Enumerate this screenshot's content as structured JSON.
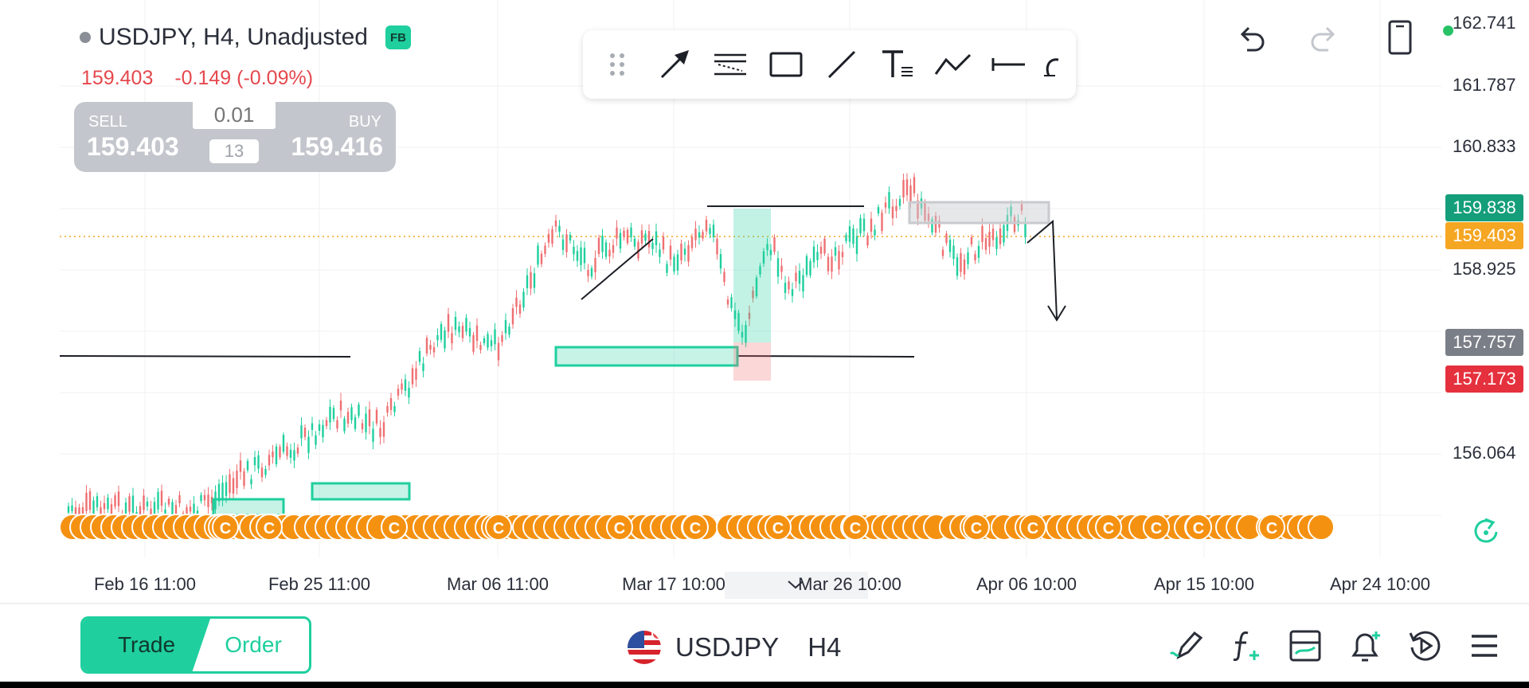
{
  "header": {
    "symbol_title": "USDJPY, H4, Unadjusted",
    "badge": "FB",
    "last_price": "159.403",
    "change": "-0.149 (-0.09%)"
  },
  "trade_panel": {
    "sell_label": "SELL",
    "sell_price": "159.403",
    "buy_label": "BUY",
    "buy_price": "159.416",
    "lot_placeholder": "0.01",
    "spread": "13"
  },
  "drawing_toolbar": {
    "tools": [
      "drag-handle-icon",
      "arrow-icon",
      "fib-retracement-icon",
      "rectangle-icon",
      "trend-line-icon",
      "text-icon",
      "path-icon",
      "horizontal-line-icon",
      "brush-icon"
    ]
  },
  "top_actions": [
    "undo-icon",
    "redo-icon",
    "fullscreen-icon"
  ],
  "price_axis": {
    "ticks": [
      "162.741",
      "161.787",
      "160.833",
      "158.925",
      "156.064"
    ],
    "tags": {
      "high": "159.838",
      "last": "159.403",
      "gray": "157.757",
      "red": "157.173"
    }
  },
  "time_axis": {
    "ticks": [
      "Feb 16 11:00",
      "Feb 25 11:00",
      "Mar 06 11:00",
      "Mar 17 10:00",
      "Mar 26 10:00",
      "Apr 06 10:00",
      "Apr 15 10:00",
      "Apr 24 10:00"
    ]
  },
  "colors": {
    "up": "#1fcf9e",
    "down": "#ef6f72",
    "last_line": "#f5a623",
    "tag_high": "#159e7a",
    "tag_last": "#f5a623",
    "tag_gray": "#7a7e86",
    "tag_red": "#e5313d",
    "event_markers": "#f59111"
  },
  "bottom_bar": {
    "trade_tab": "Trade",
    "order_tab": "Order",
    "symbol": "USDJPY",
    "timeframe": "H4",
    "icons": [
      "drawing-pencil-icon",
      "indicators-icon",
      "templates-icon",
      "alert-bell-icon",
      "replay-icon",
      "menu-icon"
    ]
  },
  "event_marker_letter": "C"
}
